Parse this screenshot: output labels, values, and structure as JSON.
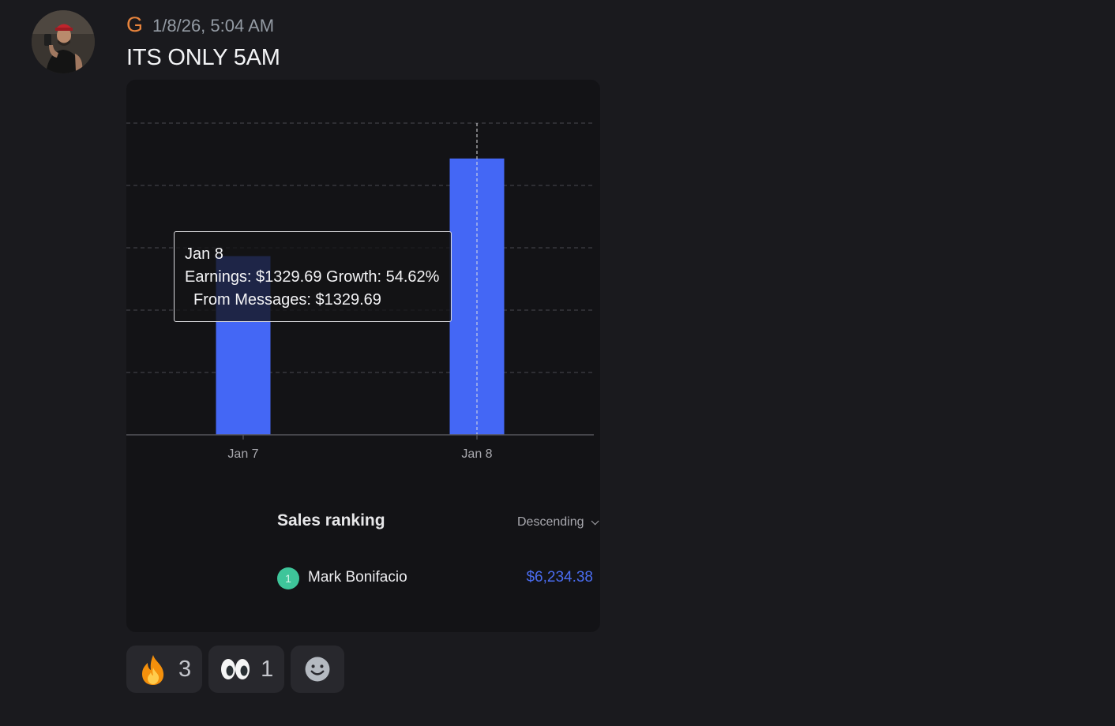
{
  "message": {
    "username": "G",
    "timestamp": "1/8/26, 5:04 AM",
    "text": "ITS ONLY 5AM",
    "colors": {
      "username": "#e8843c",
      "background": "#1a1a1e"
    }
  },
  "chart_data": {
    "type": "bar",
    "categories": [
      "Jan 7",
      "Jan 8"
    ],
    "values": [
      860,
      1329.69
    ],
    "ylim": [
      0,
      1500
    ],
    "grid": true,
    "bar_color": "#4467f5",
    "hovered_category": "Jan 8",
    "tooltip": {
      "title": "Jan 8",
      "line1": "Earnings: $1329.69 Growth: 54.62%",
      "line2": "From Messages: $1329.69"
    }
  },
  "ranking": {
    "title": "Sales ranking",
    "sort_label": "Descending",
    "items": [
      {
        "rank": "1",
        "name": "Mark Bonifacio",
        "value": "$6,234.38"
      }
    ]
  },
  "reactions": [
    {
      "icon": "fire-emoji",
      "count": "3"
    },
    {
      "icon": "eyes-emoji",
      "count": "1"
    }
  ],
  "add_reaction_icon": "smiley-add-reaction-icon"
}
